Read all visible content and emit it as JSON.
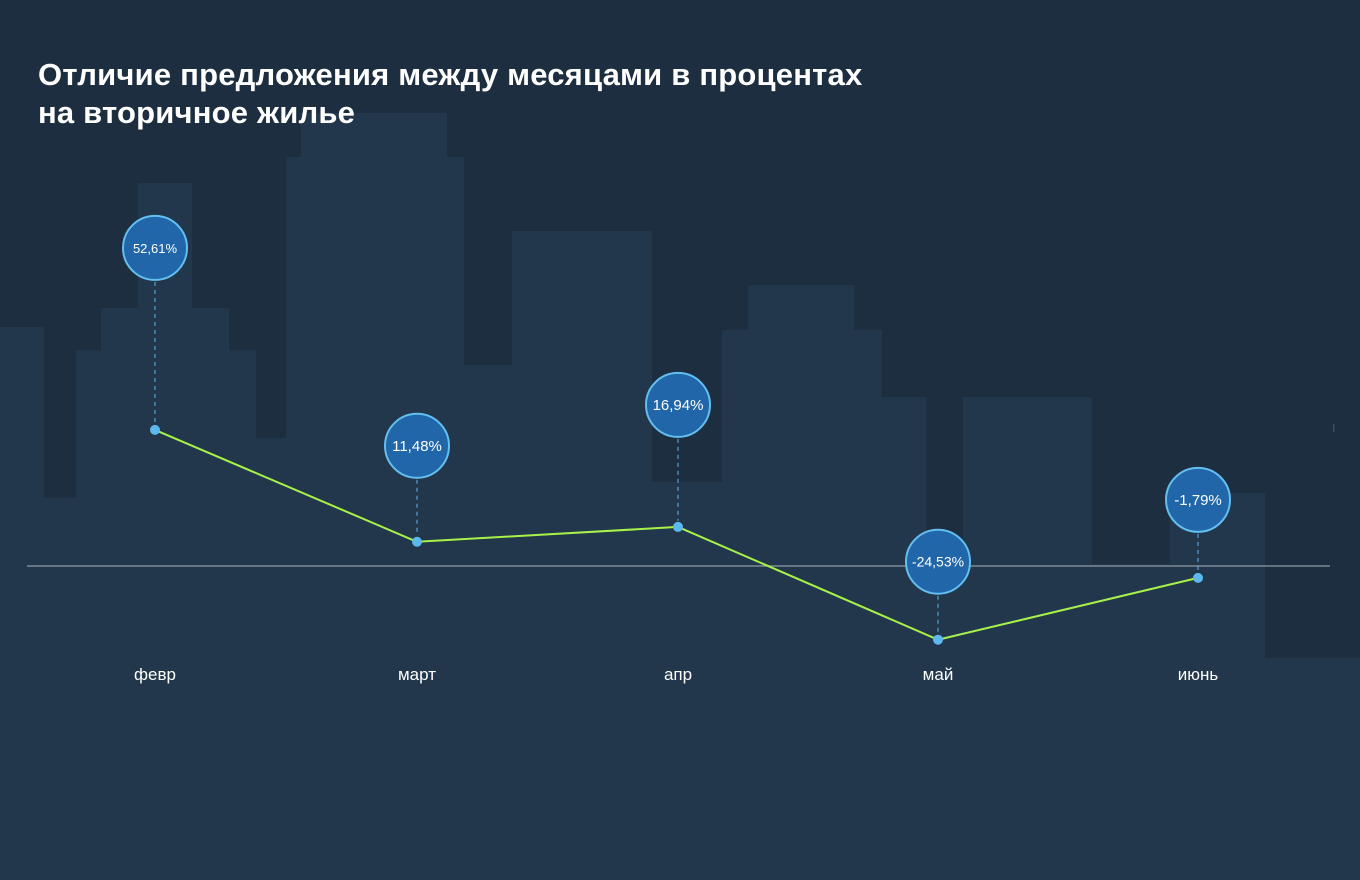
{
  "title_lines": [
    "Отличие предложения между месяцами в процентах",
    "на вторичное жилье"
  ],
  "colors": {
    "background_dark": "#1c2e40",
    "buildings": "#22374b",
    "ground": "#22374b",
    "line": "#a6f24a",
    "point": "#5cb8ee",
    "bubble_fill": "#2166a8",
    "bubble_stroke": "#63bff0",
    "baseline": "#7c8a96",
    "text": "#ffffff"
  },
  "chart_data": {
    "type": "line",
    "title": "Отличие предложения между месяцами в процентах на вторичное жилье",
    "categories": [
      "февр",
      "март",
      "апр",
      "май",
      "июнь"
    ],
    "values": [
      52.61,
      11.48,
      16.94,
      -24.53,
      -1.79
    ],
    "data_labels": [
      "52,61%",
      "11,48%",
      "16,94%",
      "-24,53%",
      "-1,79%"
    ],
    "baseline_value": 0,
    "ylim": [
      -50,
      100
    ],
    "grid": false,
    "legend": "none",
    "xlabel": "",
    "ylabel": ""
  }
}
